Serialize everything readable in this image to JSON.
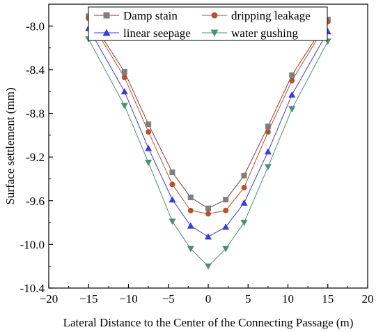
{
  "chart_data": {
    "type": "line",
    "title": "",
    "xlabel": "Lateral Distance to the Center of the Connecting Passage (m)",
    "ylabel": "Surface settlement (mm)",
    "xlim": [
      -20,
      20
    ],
    "ylim": [
      -10.4,
      -7.8
    ],
    "xticks": [
      -20,
      -15,
      -10,
      -5,
      0,
      5,
      10,
      15,
      20
    ],
    "yticks": [
      -8.0,
      -8.4,
      -8.8,
      -9.2,
      -9.6,
      -10.0,
      -10.4
    ],
    "ytick_labels": [
      "-8.0",
      "-8.4",
      "-8.8",
      "-9.2",
      "-9.6",
      "-10.0",
      "-10.4"
    ],
    "xtick_labels": [
      "−20",
      "−15",
      "−10",
      "−5",
      "0",
      "5",
      "10",
      "15",
      "20"
    ],
    "grid": false,
    "legend_position": "top",
    "x": [
      -15,
      -10.5,
      -7.5,
      -4.5,
      -2.2,
      0,
      2.2,
      4.5,
      7.5,
      10.5,
      15
    ],
    "series": [
      {
        "name": "Damp stain",
        "marker": "square",
        "color": "#7f7f7f",
        "line_color": "#8b3a3a",
        "values": [
          -7.91,
          -8.42,
          -8.9,
          -9.34,
          -9.57,
          -9.67,
          -9.59,
          -9.37,
          -8.92,
          -8.45,
          -7.94
        ]
      },
      {
        "name": "dripping leakage",
        "marker": "circle",
        "color": "#b5532d",
        "line_color": "#b5532d",
        "values": [
          -7.93,
          -8.47,
          -8.97,
          -9.45,
          -9.69,
          -9.72,
          -9.69,
          -9.48,
          -8.97,
          -8.5,
          -7.96
        ]
      },
      {
        "name": "linear seepage",
        "marker": "triangle-up",
        "color": "#3a3ae0",
        "line_color": "#3a3ae0",
        "values": [
          -8.02,
          -8.6,
          -9.12,
          -9.59,
          -9.83,
          -9.93,
          -9.84,
          -9.62,
          -9.15,
          -8.63,
          -8.05
        ]
      },
      {
        "name": "water gushing",
        "marker": "triangle-down",
        "color": "#4f8f6f",
        "line_color": "#4f8f6f",
        "values": [
          -8.12,
          -8.73,
          -9.25,
          -9.79,
          -10.04,
          -10.2,
          -10.04,
          -9.8,
          -9.29,
          -8.76,
          -8.14
        ]
      }
    ]
  }
}
